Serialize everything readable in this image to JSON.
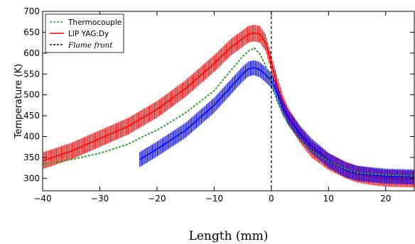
{
  "chart_data": {
    "type": "line",
    "xlabel": "Length (mm)",
    "ylabel": "Temperature (K)",
    "xlim": [
      -40,
      25
    ],
    "ylim": [
      270,
      700
    ],
    "x_ticks": [
      -40,
      -30,
      -20,
      -10,
      0,
      10,
      20
    ],
    "x_tick_labels": [
      "−40",
      "−30",
      "−20",
      "−10",
      "0",
      "10",
      "20"
    ],
    "y_ticks": [
      300,
      350,
      400,
      450,
      500,
      550,
      600,
      650,
      700
    ],
    "y_tick_labels": [
      "300",
      "350",
      "400",
      "450",
      "500",
      "550",
      "600",
      "650",
      "700"
    ],
    "grid": false,
    "legend_position": "top-left",
    "flame_front_x": 0,
    "series": [
      {
        "name": "Thermocouple",
        "color": "#2ca02c",
        "style": "dashed",
        "x": [
          -40,
          -35,
          -30,
          -25,
          -22,
          -20,
          -15,
          -10,
          -7,
          -5,
          -4,
          -3,
          -2,
          -1,
          0,
          1,
          2,
          3,
          5,
          7,
          10,
          13,
          15,
          20,
          25
        ],
        "y": [
          333,
          345,
          360,
          382,
          403,
          415,
          457,
          510,
          560,
          592,
          605,
          612,
          598,
          570,
          535,
          485,
          455,
          428,
          392,
          366,
          341,
          322,
          313,
          308,
          305
        ]
      },
      {
        "name": "LIP YAG:Dy",
        "color": "#ff0000",
        "style": "solid",
        "error": 20,
        "x": [
          -40,
          -35,
          -30,
          -25,
          -20,
          -15,
          -10,
          -7,
          -5,
          -4,
          -3,
          -2,
          -1,
          0,
          1,
          2,
          3,
          5,
          7,
          10,
          13,
          15,
          18,
          20,
          25
        ],
        "y": [
          342,
          365,
          395,
          425,
          465,
          515,
          575,
          615,
          635,
          645,
          648,
          645,
          625,
          575,
          525,
          480,
          448,
          405,
          370,
          340,
          320,
          310,
          303,
          300,
          298
        ]
      },
      {
        "name": "LIP YAG:Dy",
        "color": "#0000ff",
        "style": "solid",
        "error": 18,
        "x": [
          -23,
          -20,
          -15,
          -10,
          -7,
          -5,
          -4,
          -3,
          -2,
          -1,
          0,
          1,
          2,
          3,
          5,
          7,
          10,
          13,
          15,
          20,
          25
        ],
        "y": [
          345,
          370,
          415,
          475,
          520,
          550,
          562,
          565,
          560,
          548,
          535,
          505,
          470,
          445,
          408,
          378,
          343,
          320,
          312,
          305,
          303
        ]
      }
    ],
    "legend": [
      {
        "label": "Thermocouple",
        "color": "#2ca02c",
        "style": "dashed"
      },
      {
        "label": "LIP YAG:Dy",
        "color": "#ff0000",
        "style": "solid"
      },
      {
        "label": "Flame front",
        "color": "#000000",
        "style": "dashed",
        "italic": true
      }
    ]
  }
}
